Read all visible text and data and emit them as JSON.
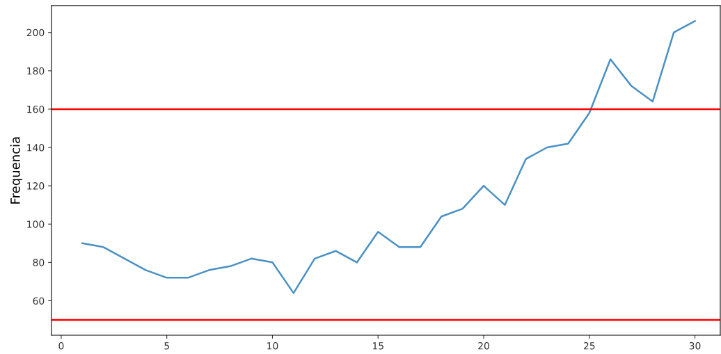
{
  "chart_data": {
    "type": "line",
    "ylabel": "Frequencia",
    "x": [
      1,
      2,
      3,
      4,
      5,
      6,
      7,
      8,
      9,
      10,
      11,
      12,
      13,
      14,
      15,
      16,
      17,
      18,
      19,
      20,
      21,
      22,
      23,
      24,
      25,
      26,
      27,
      28,
      29,
      30
    ],
    "series": [
      {
        "color": "#4a90c4",
        "values": [
          90,
          88,
          82,
          76,
          72,
          72,
          76,
          78,
          82,
          80,
          64,
          82,
          86,
          80,
          96,
          88,
          88,
          104,
          108,
          120,
          110,
          134,
          140,
          142,
          158,
          186,
          172,
          164,
          200,
          206
        ]
      }
    ],
    "xlim": [
      -0.46,
      31.2
    ],
    "ylim": [
      42,
      214
    ],
    "xticks": [
      0,
      5,
      10,
      15,
      20,
      25,
      30
    ],
    "yticks": [
      60,
      80,
      100,
      120,
      140,
      160,
      180,
      200
    ],
    "ref_lines": [
      {
        "axis": "y",
        "value": 160,
        "color": "#ff0000"
      },
      {
        "axis": "y",
        "value": 50,
        "color": "#ff0000"
      }
    ],
    "grid": false
  }
}
